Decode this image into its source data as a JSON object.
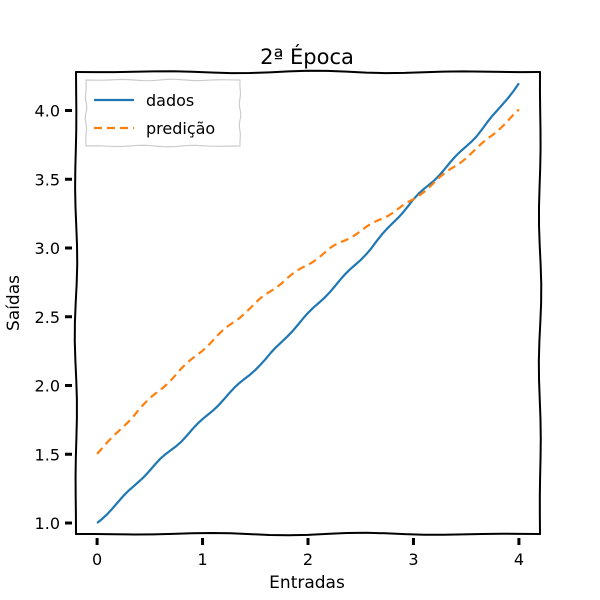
{
  "chart_data": {
    "type": "line",
    "title": "2ª Época",
    "xlabel": "Entradas",
    "ylabel": "Saídas",
    "xlim": [
      -0.2,
      4.2
    ],
    "ylim": [
      0.92,
      4.28
    ],
    "xticks": [
      0,
      1,
      2,
      3,
      4
    ],
    "xtick_labels": [
      "0",
      "1",
      "2",
      "3",
      "4"
    ],
    "yticks": [
      1.0,
      1.5,
      2.0,
      2.5,
      3.0,
      3.5,
      4.0
    ],
    "ytick_labels": [
      "1.0",
      "1.5",
      "2.0",
      "2.5",
      "3.0",
      "3.5",
      "4.0"
    ],
    "grid": false,
    "legend_position": "top-left",
    "series": [
      {
        "name": "dados",
        "color": "#1f77b4",
        "style": "solid",
        "x": [
          0,
          0.2,
          0.4,
          0.6,
          0.8,
          1.0,
          1.2,
          1.4,
          1.6,
          1.8,
          2.0,
          2.2,
          2.4,
          2.6,
          2.8,
          3.0,
          3.2,
          3.4,
          3.6,
          3.8,
          4.0
        ],
        "y": [
          1.0,
          1.15,
          1.31,
          1.46,
          1.6,
          1.75,
          1.9,
          2.05,
          2.19,
          2.36,
          2.52,
          2.68,
          2.84,
          3.0,
          3.18,
          3.35,
          3.5,
          3.66,
          3.82,
          4.0,
          4.2
        ]
      },
      {
        "name": "predição",
        "color": "#ff7f0e",
        "style": "dashed",
        "x": [
          0,
          0.2,
          0.4,
          0.6,
          0.8,
          1.0,
          1.2,
          1.4,
          1.6,
          1.8,
          2.0,
          2.2,
          2.4,
          2.6,
          2.8,
          3.0,
          3.2,
          3.4,
          3.6,
          3.8,
          4.0
        ],
        "y": [
          1.51,
          1.66,
          1.83,
          1.97,
          2.12,
          2.26,
          2.4,
          2.53,
          2.66,
          2.78,
          2.88,
          2.99,
          3.08,
          3.17,
          3.26,
          3.35,
          3.48,
          3.6,
          3.72,
          3.86,
          4.0
        ]
      }
    ]
  }
}
